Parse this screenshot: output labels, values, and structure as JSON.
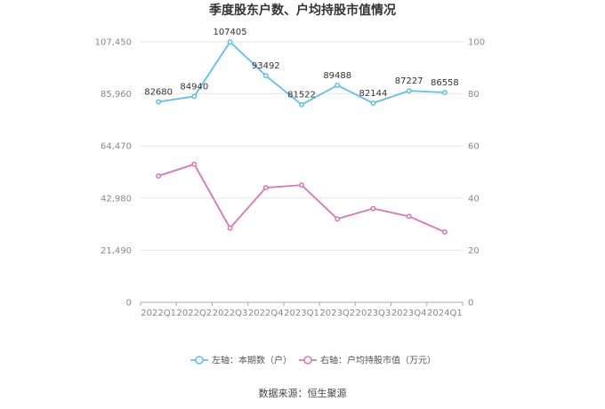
{
  "chart_data": {
    "type": "line",
    "title": "季度股东户数、户均持股市值情况",
    "categories": [
      "2022Q1",
      "2022Q2",
      "2022Q3",
      "2022Q4",
      "2023Q1",
      "2023Q2",
      "2023Q3",
      "2023Q4",
      "2024Q1"
    ],
    "series": [
      {
        "name": "左轴：本期数（户）",
        "axis": "left",
        "color": "#5bc0eb",
        "values": [
          82680,
          84940,
          107405,
          93492,
          81522,
          89488,
          82144,
          87227,
          86558
        ],
        "labels": [
          "82680",
          "84940",
          "107405",
          "93492",
          "81522",
          "89488",
          "82144",
          "87227",
          "86558"
        ]
      },
      {
        "name": "右轴：户均持股市值（万元）",
        "axis": "right",
        "color": "#d874b8",
        "values": [
          48.5,
          53.0,
          28.5,
          44.0,
          45.0,
          32.0,
          36.0,
          33.0,
          27.0
        ]
      }
    ],
    "left_axis": {
      "min": 0,
      "max": 107450,
      "ticks": [
        0,
        21490,
        42980,
        64470,
        85960,
        107450
      ],
      "tick_labels": [
        "0",
        "21,490",
        "42,980",
        "64,470",
        "85,960",
        "107,450"
      ]
    },
    "right_axis": {
      "min": 0,
      "max": 100,
      "ticks": [
        0,
        20,
        40,
        60,
        80,
        100
      ],
      "tick_labels": [
        "0",
        "20",
        "40",
        "60",
        "80",
        "100"
      ]
    },
    "grid": true,
    "legend_position": "bottom"
  },
  "source": "数据来源：恒生聚源"
}
